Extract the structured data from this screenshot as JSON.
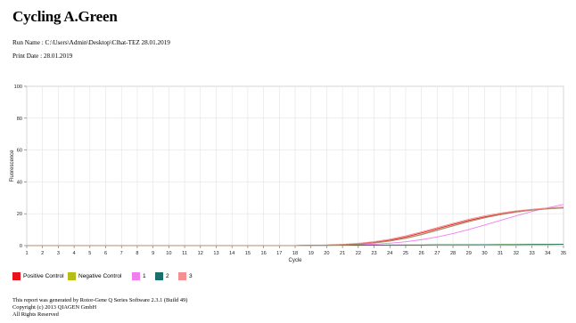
{
  "header": {
    "title": "Cycling A.Green",
    "run_name": "Run Name : C:\\Users\\Admin\\Desktop\\Clhat-TEZ  28.01.2019",
    "print_date": "Print Date :  28.01.2019"
  },
  "chart_data": {
    "type": "line",
    "title": "",
    "xlabel": "Cycle",
    "ylabel": "Fluorescence",
    "xlim": [
      1,
      35
    ],
    "ylim": [
      0,
      100
    ],
    "grid": true,
    "x_ticks": [
      1,
      2,
      3,
      4,
      5,
      6,
      7,
      8,
      9,
      10,
      11,
      12,
      13,
      14,
      15,
      16,
      17,
      18,
      19,
      20,
      21,
      22,
      23,
      24,
      25,
      26,
      27,
      28,
      29,
      30,
      31,
      32,
      33,
      34,
      35
    ],
    "y_ticks": [
      0,
      20,
      40,
      60,
      80,
      100
    ],
    "x": [
      1,
      2,
      3,
      4,
      5,
      6,
      7,
      8,
      9,
      10,
      11,
      12,
      13,
      14,
      15,
      16,
      17,
      18,
      19,
      20,
      21,
      22,
      23,
      24,
      25,
      26,
      27,
      28,
      29,
      30,
      31,
      32,
      33,
      34,
      35
    ],
    "series": [
      {
        "name": "Positive Control",
        "color": "#e8141b",
        "values": [
          0,
          0,
          0,
          0,
          0,
          0,
          0,
          0,
          0,
          0,
          0,
          0,
          0,
          0,
          0,
          0,
          0,
          0,
          0.2,
          0.3,
          0.6,
          1.1,
          2.0,
          3.4,
          5.4,
          7.9,
          10.6,
          13.3,
          15.8,
          18.0,
          19.8,
          21.3,
          22.4,
          23.2,
          23.8
        ]
      },
      {
        "name": "Negative Control",
        "color": "#b5bd16",
        "values": [
          0,
          0,
          0,
          0,
          0,
          0,
          0,
          0,
          0,
          0,
          0,
          0,
          0,
          0,
          0,
          0,
          0,
          0,
          0.1,
          0.1,
          0.2,
          0.2,
          0.3,
          0.3,
          0.4,
          0.4,
          0.5,
          0.5,
          0.6,
          0.6,
          0.7,
          0.7,
          0.8,
          0.8,
          0.9
        ]
      },
      {
        "name": "1",
        "color": "#f07ef0",
        "values": [
          0,
          0,
          0,
          0,
          0,
          0,
          0,
          0,
          0,
          0,
          0,
          0,
          0,
          0,
          0,
          0,
          0,
          0,
          0.1,
          0.2,
          0.3,
          0.5,
          0.9,
          1.5,
          2.4,
          3.7,
          5.4,
          7.6,
          10.1,
          12.9,
          15.8,
          18.7,
          21.4,
          23.8,
          25.8
        ]
      },
      {
        "name": "2",
        "color": "#1a6f6c",
        "values": [
          0,
          0,
          0,
          0,
          0,
          0,
          0,
          0,
          0,
          0,
          0,
          0,
          0,
          0,
          0,
          0,
          0,
          0,
          0.2,
          0.2,
          0.3,
          0.3,
          0.3,
          0.4,
          0.4,
          0.4,
          0.5,
          0.5,
          0.5,
          0.6,
          0.6,
          0.6,
          0.7,
          0.7,
          0.8
        ]
      },
      {
        "name": "3",
        "color": "#f49090",
        "values": [
          0,
          0,
          0,
          0,
          0,
          0,
          0,
          0,
          0,
          0,
          0,
          0,
          0,
          0,
          0,
          0,
          0,
          0,
          0.2,
          0.4,
          0.8,
          1.4,
          2.5,
          4.0,
          6.1,
          8.6,
          11.3,
          14.0,
          16.5,
          18.7,
          20.4,
          21.8,
          22.8,
          23.6,
          24.2
        ]
      },
      {
        "name": "",
        "color": "#7a9a6a",
        "values": [
          0,
          0,
          0,
          0,
          0,
          0,
          0,
          0,
          0,
          0,
          0,
          0,
          0,
          0,
          0,
          0,
          0,
          0,
          0.2,
          0.3,
          0.5,
          0.9,
          1.6,
          2.8,
          4.5,
          6.8,
          9.5,
          12.3,
          15.0,
          17.4,
          19.4,
          21.0,
          22.2,
          23.0,
          23.6
        ]
      },
      {
        "name": "",
        "color": "#b88a6c",
        "values": [
          0,
          0,
          0,
          0,
          0,
          0,
          0,
          0,
          0,
          0,
          0,
          0,
          0,
          0,
          0,
          0,
          0,
          0,
          0.2,
          0.3,
          0.6,
          1.0,
          1.8,
          3.0,
          4.8,
          7.1,
          9.8,
          12.6,
          15.2,
          17.5,
          19.5,
          21.1,
          22.3,
          23.1,
          23.7
        ]
      }
    ],
    "legend_placement": "bottom-left"
  },
  "legend": [
    {
      "label": "Positive Control",
      "color": "#e8141b"
    },
    {
      "label": "Negative Control",
      "color": "#b5bd16"
    },
    {
      "label": "1",
      "color": "#f07ef0"
    },
    {
      "label": "2",
      "color": "#1a6f6c"
    },
    {
      "label": "3",
      "color": "#f49090"
    }
  ],
  "footer": {
    "line1": "This report was generated by Rotor-Gene Q Series Software 2.3.1 (Build 49)",
    "line2": "Copyright (c) 2013 QIAGEN GmbH",
    "line3": "All Rights Reserved"
  }
}
